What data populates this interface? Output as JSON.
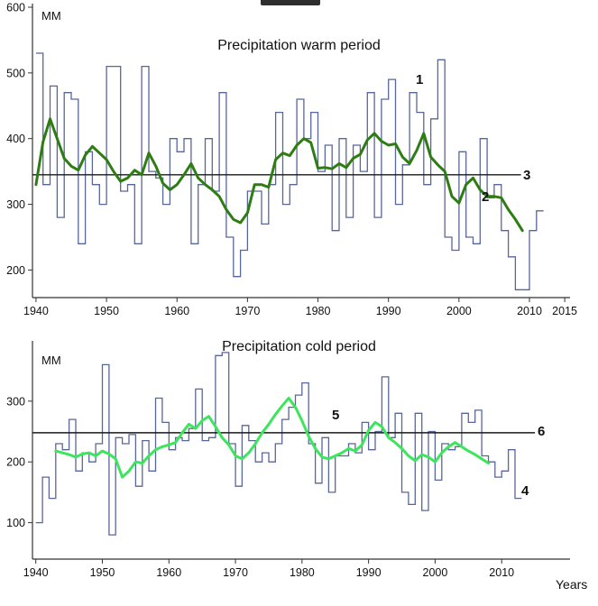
{
  "chart_data": [
    {
      "id": "warm",
      "type": "line",
      "title": "Precipitation warm period",
      "unit_label": "MM",
      "xlabel": "",
      "x_ticks": [
        1940,
        1950,
        1960,
        1970,
        1980,
        1990,
        2000,
        2010,
        2015
      ],
      "y_ticks": [
        200,
        300,
        400,
        500,
        600
      ],
      "x_range": [
        1939.5,
        2015.5
      ],
      "y_range": [
        158,
        600
      ],
      "grid": false,
      "series": [
        {
          "name": "annual precipitation (stepped)",
          "legend_label": "1",
          "style": "step",
          "color": "#59669a",
          "start_year": 1940,
          "values": [
            530,
            330,
            480,
            280,
            470,
            460,
            240,
            380,
            330,
            300,
            510,
            510,
            320,
            330,
            240,
            510,
            350,
            340,
            300,
            400,
            380,
            400,
            240,
            330,
            400,
            320,
            470,
            250,
            190,
            230,
            320,
            320,
            270,
            330,
            440,
            300,
            330,
            460,
            400,
            440,
            350,
            390,
            260,
            400,
            280,
            390,
            350,
            470,
            280,
            460,
            490,
            300,
            360,
            470,
            440,
            330,
            430,
            520,
            250,
            230,
            380,
            250,
            240,
            400,
            310,
            330,
            260,
            220,
            170,
            170,
            260,
            290
          ]
        },
        {
          "name": "smoothed trend",
          "legend_label": "2",
          "style": "line",
          "color": "#2e7d13",
          "start_year": 1940,
          "values": [
            330,
            395,
            430,
            400,
            370,
            358,
            352,
            375,
            388,
            378,
            368,
            350,
            335,
            340,
            352,
            345,
            378,
            358,
            332,
            322,
            330,
            345,
            362,
            340,
            330,
            322,
            312,
            292,
            277,
            272,
            287,
            330,
            330,
            326,
            368,
            378,
            374,
            390,
            400,
            394,
            355,
            356,
            354,
            362,
            356,
            370,
            376,
            398,
            408,
            396,
            390,
            392,
            372,
            362,
            382,
            408,
            372,
            360,
            350,
            312,
            302,
            330,
            340,
            322,
            312,
            312,
            310,
            292,
            277,
            260
          ]
        }
      ],
      "mean_line": {
        "legend_label": "3",
        "value": 345,
        "from": 1939.5,
        "to": 2008.8,
        "color": "#1a1a1a"
      },
      "annotations": [
        {
          "text": "1"
        },
        {
          "text": "2"
        },
        {
          "text": "3"
        }
      ]
    },
    {
      "id": "cold",
      "type": "line",
      "title": "Precipitation cold period",
      "unit_label": "MM",
      "xlabel": "Years",
      "x_ticks": [
        1940,
        1950,
        1960,
        1970,
        1980,
        1990,
        2000,
        2010
      ],
      "y_ticks": [
        100,
        200,
        300
      ],
      "x_range": [
        1939.5,
        2020
      ],
      "y_range": [
        40,
        420
      ],
      "grid": false,
      "series": [
        {
          "name": "annual precipitation (stepped)",
          "legend_label": "4",
          "style": "step",
          "color": "#59669a",
          "start_year": 1940,
          "values": [
            100,
            175,
            140,
            230,
            220,
            270,
            185,
            215,
            200,
            230,
            360,
            80,
            240,
            230,
            245,
            160,
            235,
            185,
            305,
            265,
            220,
            240,
            235,
            255,
            320,
            235,
            240,
            375,
            380,
            230,
            160,
            260,
            235,
            200,
            215,
            200,
            230,
            270,
            290,
            310,
            330,
            230,
            165,
            240,
            150,
            210,
            210,
            230,
            215,
            265,
            220,
            250,
            340,
            240,
            280,
            150,
            130,
            280,
            120,
            250,
            170,
            230,
            220,
            225,
            280,
            265,
            285,
            210,
            200,
            175,
            185,
            220,
            140
          ]
        },
        {
          "name": "smoothed trend",
          "legend_label": "5",
          "style": "line",
          "color": "#3ce65c",
          "start_year": 1943,
          "values": [
            218,
            215,
            212,
            208,
            213,
            215,
            210,
            218,
            213,
            205,
            175,
            185,
            200,
            198,
            210,
            220,
            225,
            228,
            232,
            248,
            262,
            255,
            268,
            275,
            258,
            240,
            228,
            210,
            205,
            215,
            230,
            248,
            262,
            278,
            292,
            305,
            290,
            268,
            242,
            222,
            208,
            205,
            210,
            215,
            222,
            218,
            228,
            252,
            265,
            258,
            240,
            232,
            222,
            210,
            202,
            212,
            208,
            200,
            215,
            225,
            232,
            225,
            218,
            212,
            205,
            198
          ]
        }
      ],
      "mean_line": {
        "legend_label": "6",
        "value": 248,
        "from": 1939.5,
        "to": 2015,
        "color": "#1a1a1a"
      },
      "annotations": [
        {
          "text": "4"
        },
        {
          "text": "5"
        },
        {
          "text": "6"
        }
      ]
    }
  ]
}
